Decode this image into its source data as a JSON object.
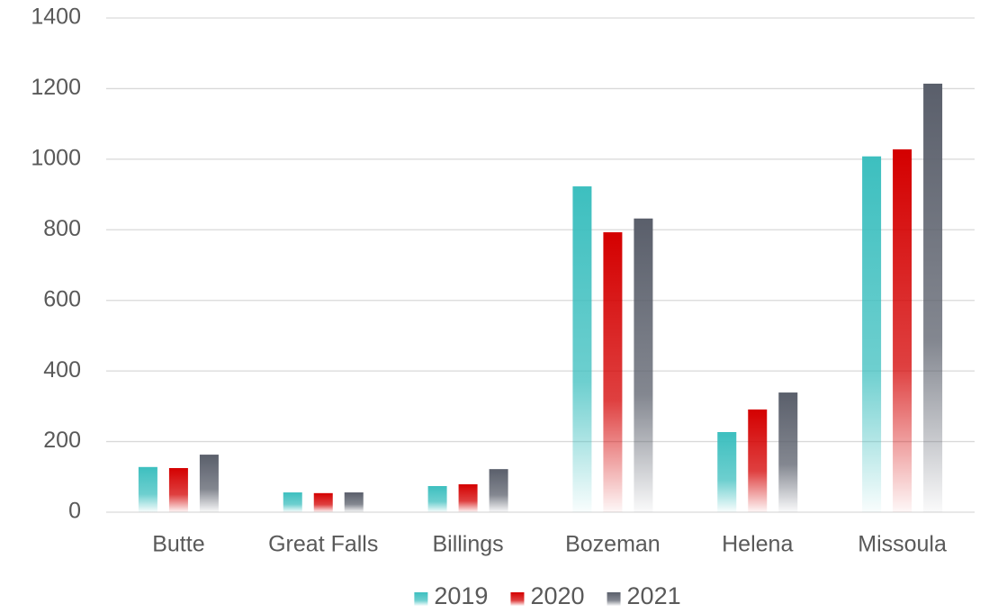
{
  "chart_data": {
    "type": "bar",
    "categories": [
      "Butte",
      "Great Falls",
      "Billings",
      "Bozeman",
      "Helena",
      "Missoula"
    ],
    "series": [
      {
        "name": "2019",
        "color": "#3dbfbf",
        "values": [
          128,
          56,
          74,
          923,
          227,
          1008
        ]
      },
      {
        "name": "2020",
        "color": "#d40000",
        "values": [
          125,
          54,
          79,
          793,
          291,
          1028
        ]
      },
      {
        "name": "2021",
        "color": "#5a5f6b",
        "values": [
          163,
          56,
          122,
          832,
          339,
          1214
        ]
      }
    ],
    "ylim": [
      0,
      1400
    ],
    "yticks": [
      0,
      200,
      400,
      600,
      800,
      1000,
      1200,
      1400
    ],
    "grid": true,
    "legend": "bottom"
  }
}
